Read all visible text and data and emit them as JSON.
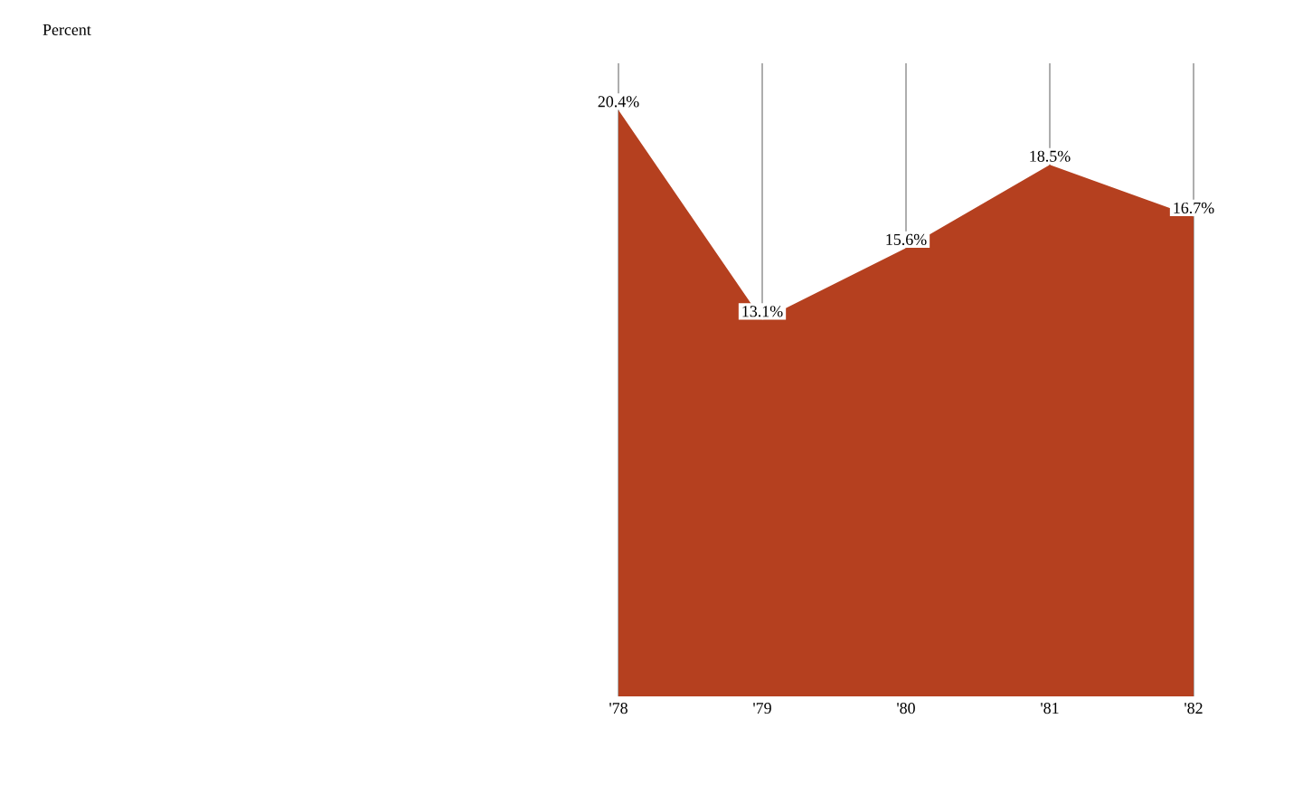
{
  "chart_data": {
    "type": "area",
    "title": "Percent",
    "categories": [
      "'78",
      "'79",
      "'80",
      "'81",
      "'82"
    ],
    "values": [
      20.4,
      13.1,
      15.6,
      18.5,
      16.7
    ],
    "value_labels": [
      "20.4%",
      "13.1%",
      "15.6%",
      "18.5%",
      "16.7%"
    ],
    "color": "#b5401f",
    "grid": "x",
    "tick_labels": "x"
  }
}
